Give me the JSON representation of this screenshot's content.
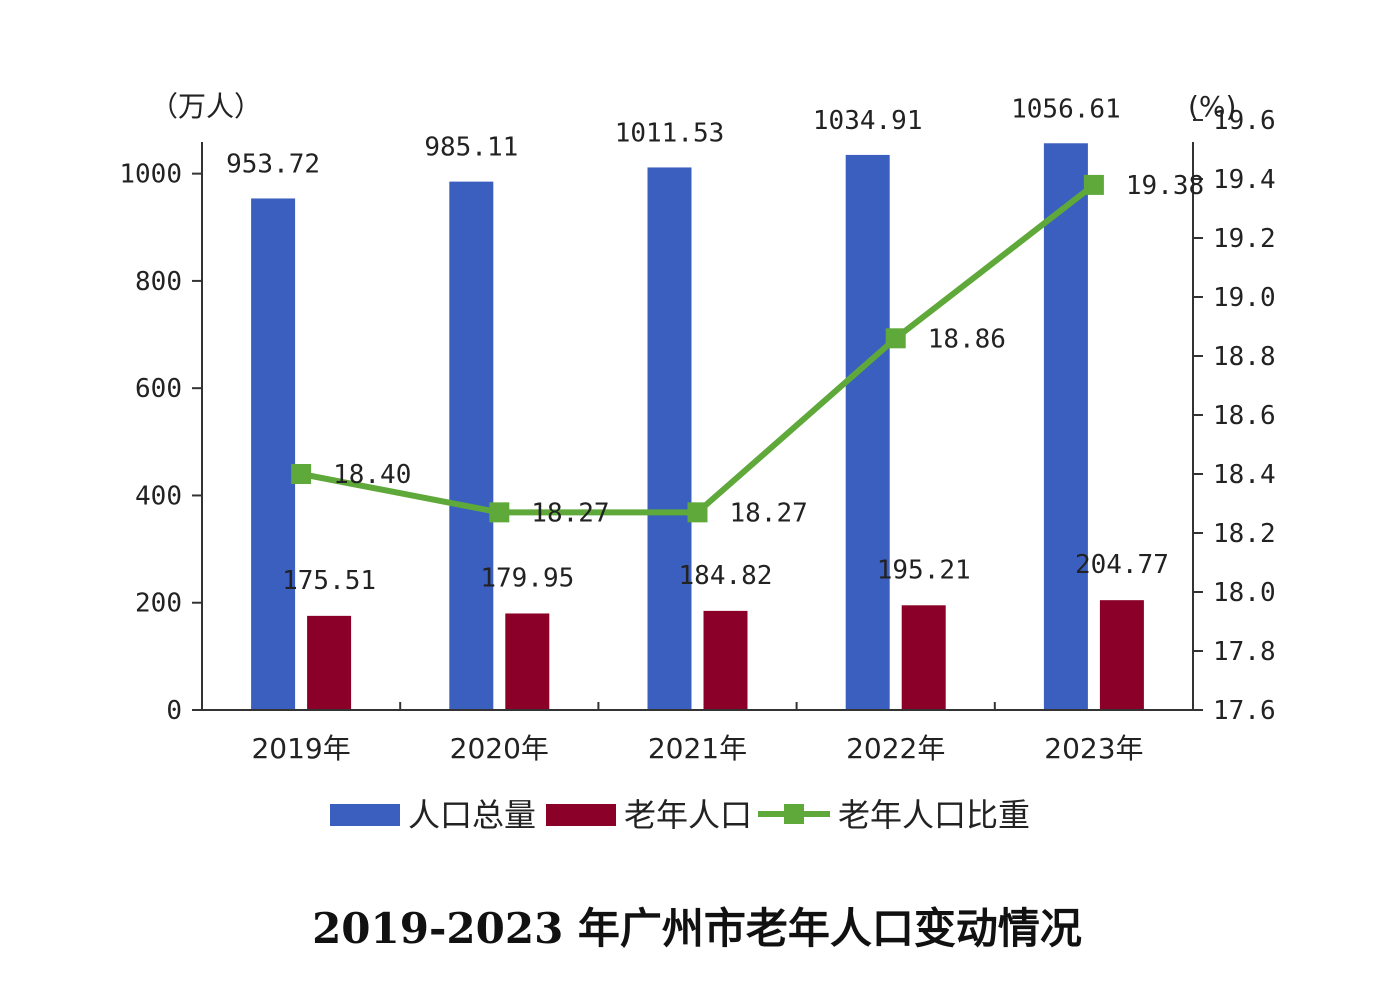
{
  "chart_data": {
    "type": "bar",
    "title": "2019-2023 年广州市老年人口变动情况",
    "categories": [
      "2019年",
      "2020年",
      "2021年",
      "2022年",
      "2023年"
    ],
    "left_axis": {
      "unit": "（万人）",
      "ylim": [
        0,
        1100
      ],
      "ticks": [
        0,
        200,
        400,
        600,
        800,
        1000
      ]
    },
    "right_axis": {
      "unit": "(%)",
      "ylim": [
        17.6,
        19.6
      ],
      "ticks": [
        "17.6",
        "17.8",
        "18.0",
        "18.2",
        "18.4",
        "18.6",
        "18.8",
        "19.0",
        "19.2",
        "19.4",
        "19.6"
      ]
    },
    "series": [
      {
        "name": "人口总量",
        "type": "bar",
        "axis": "left",
        "color": "#3a5fbf",
        "values": [
          953.72,
          985.11,
          1011.53,
          1034.91,
          1056.61
        ],
        "labels": [
          "953.72",
          "985.11",
          "1011.53",
          "1034.91",
          "1056.61"
        ]
      },
      {
        "name": "老年人口",
        "type": "bar",
        "axis": "left",
        "color": "#8b0028",
        "values": [
          175.51,
          179.95,
          184.82,
          195.21,
          204.77
        ],
        "labels": [
          "175.51",
          "179.95",
          "184.82",
          "195.21",
          "204.77"
        ]
      },
      {
        "name": "老年人口比重",
        "type": "line",
        "axis": "right",
        "color": "#5fa83a",
        "values": [
          18.4,
          18.27,
          18.27,
          18.86,
          19.38
        ],
        "labels": [
          "18.40",
          "18.27",
          "18.27",
          "18.86",
          "19.38"
        ]
      }
    ],
    "legend": {
      "position": "bottom"
    },
    "grid": false
  }
}
